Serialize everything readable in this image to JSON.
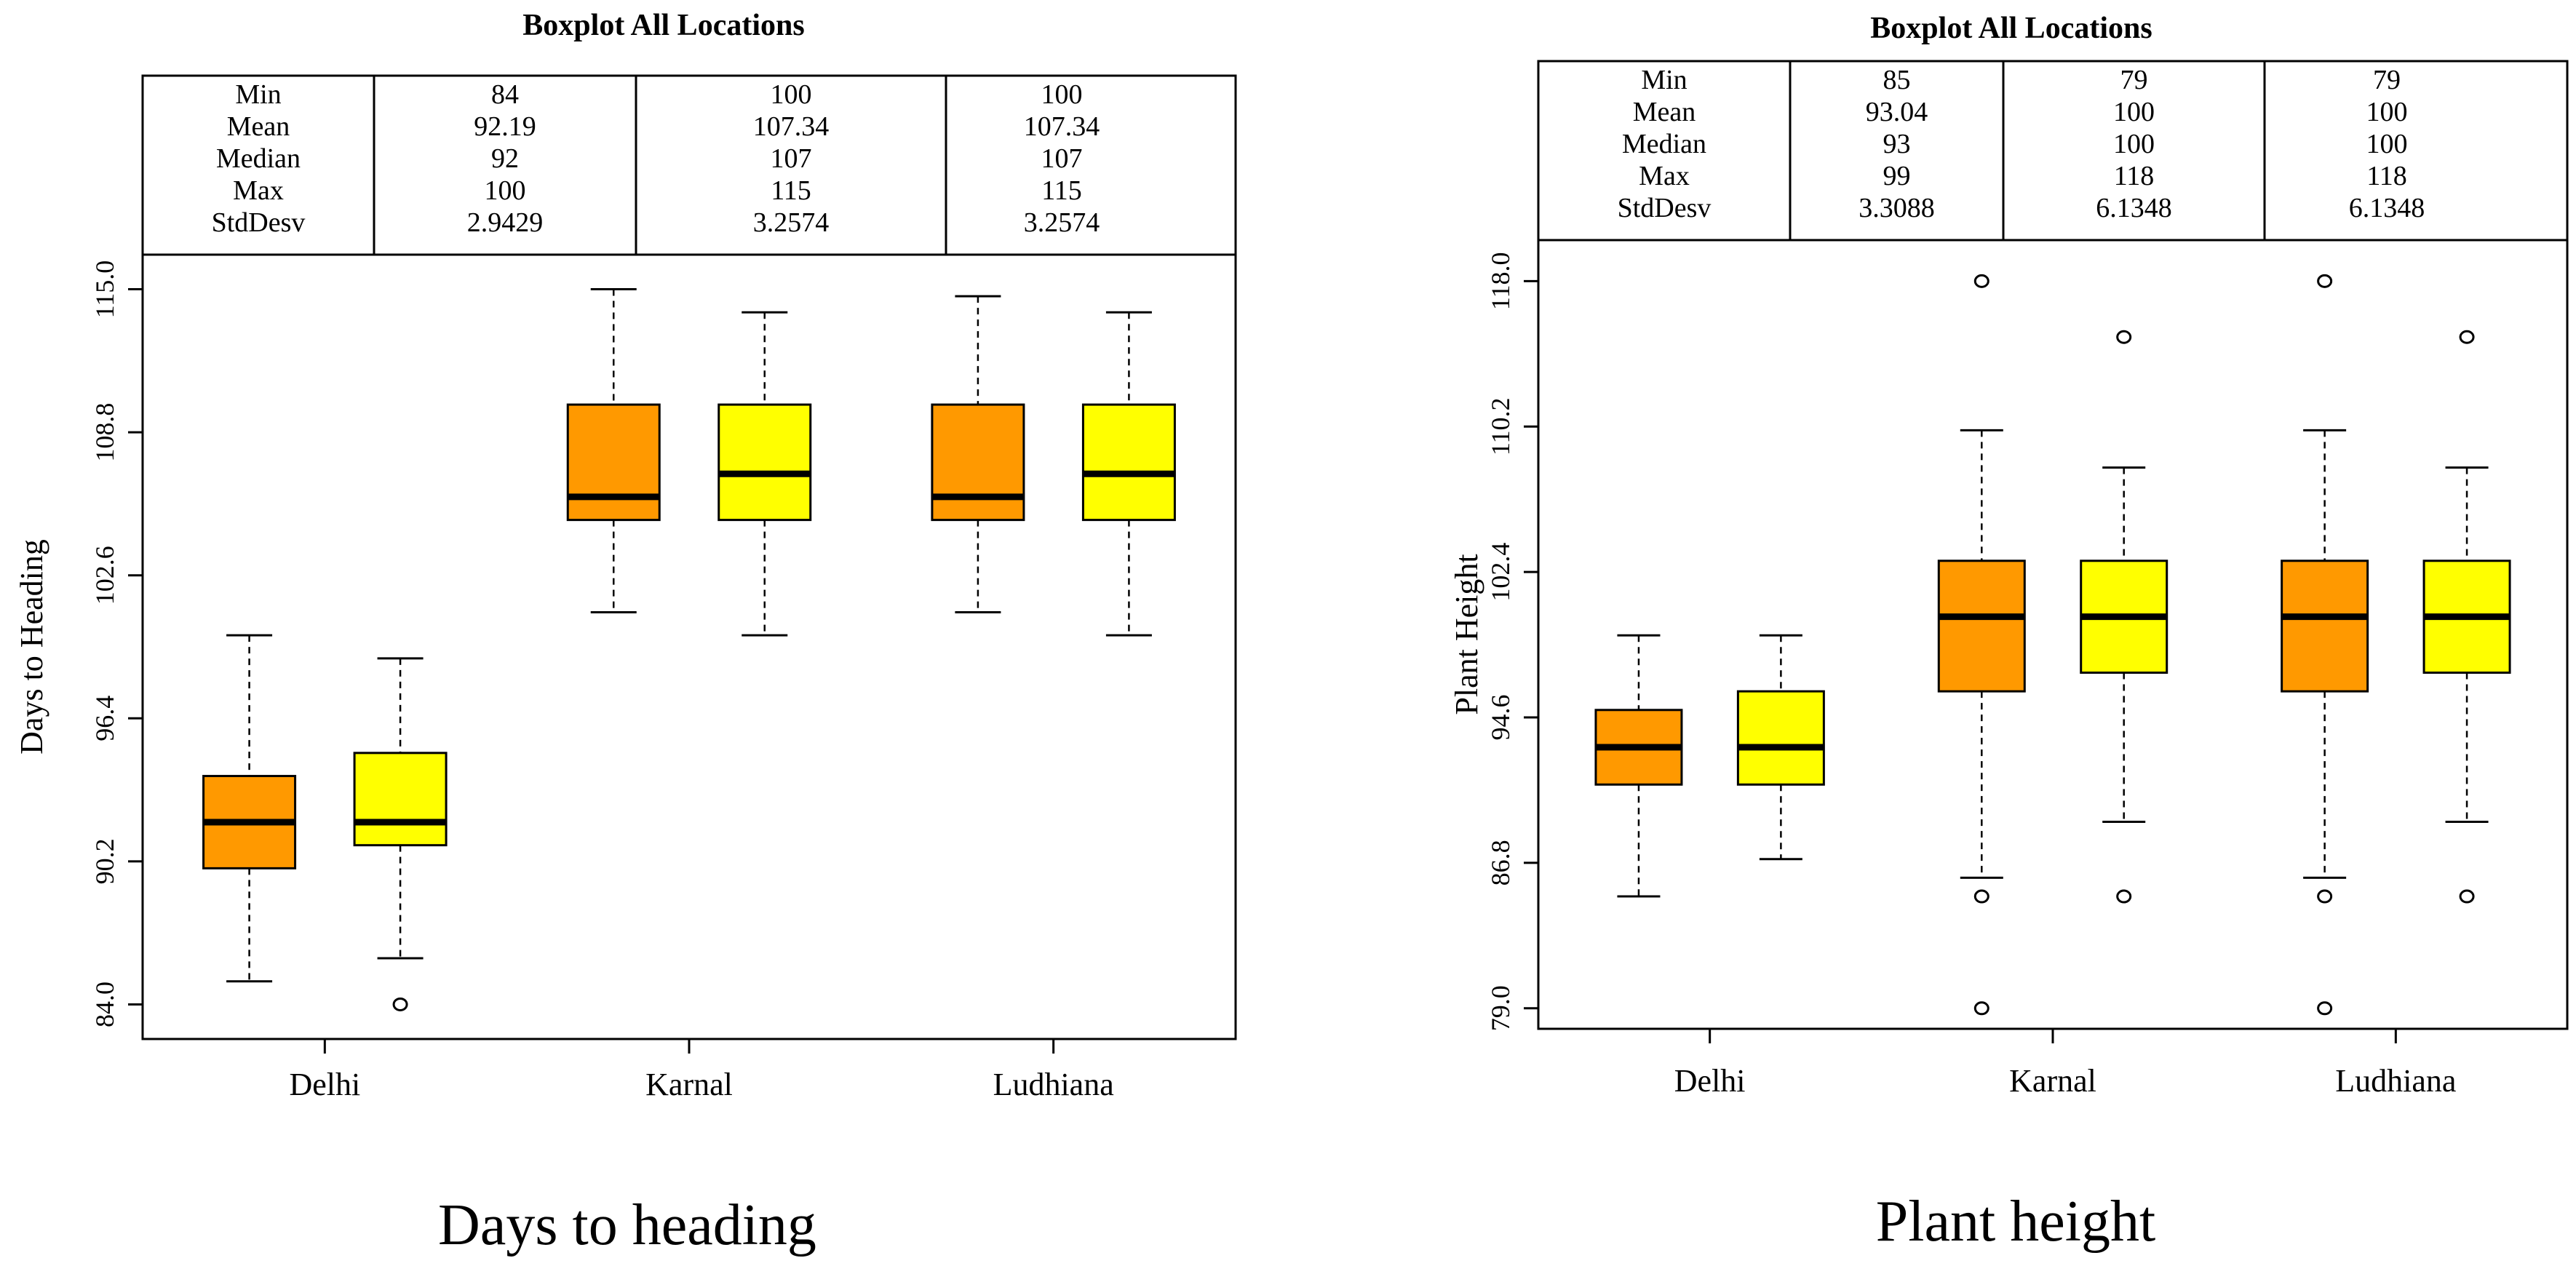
{
  "colors": {
    "series1": "#FF9900",
    "series2": "#FFFF00",
    "line": "#000000",
    "background": "#FFFFFF"
  },
  "chart_data": [
    {
      "type": "boxplot",
      "title": "Boxplot All Locations",
      "ylabel": "Days to Heading",
      "xlabel": "",
      "caption": "Days to heading",
      "categories": [
        "Delhi",
        "Karnal",
        "Ludhiana"
      ],
      "ylim": [
        82.5,
        116.5
      ],
      "yticks": [
        84.0,
        90.2,
        96.4,
        102.6,
        108.8,
        115.0
      ],
      "ytick_labels": [
        "84.0",
        "90.2",
        "96.4",
        "102.6",
        "108.8",
        "115.0"
      ],
      "stats_labels": [
        "Min",
        "Mean",
        "Median",
        "Max",
        "StdDesv"
      ],
      "stats_columns": [
        [
          "84",
          "92.19",
          "92",
          "100",
          "2.9429"
        ],
        [
          "100",
          "107.34",
          "107",
          "115",
          "3.2574"
        ],
        [
          "100",
          "107.34",
          "107",
          "115",
          "3.2574"
        ]
      ],
      "boxes": [
        {
          "category": "Delhi",
          "series": 1,
          "whisker_low": 85,
          "q1": 89.9,
          "median": 91.9,
          "q3": 93.9,
          "whisker_high": 100,
          "outliers": []
        },
        {
          "category": "Delhi",
          "series": 2,
          "whisker_low": 86,
          "q1": 90.9,
          "median": 91.9,
          "q3": 94.9,
          "whisker_high": 99,
          "outliers": [
            84
          ]
        },
        {
          "category": "Karnal",
          "series": 1,
          "whisker_low": 101,
          "q1": 105,
          "median": 106,
          "q3": 110,
          "whisker_high": 115,
          "outliers": []
        },
        {
          "category": "Karnal",
          "series": 2,
          "whisker_low": 100,
          "q1": 105,
          "median": 107,
          "q3": 110,
          "whisker_high": 114,
          "outliers": []
        },
        {
          "category": "Ludhiana",
          "series": 1,
          "whisker_low": 101,
          "q1": 105,
          "median": 106,
          "q3": 110,
          "whisker_high": 114.7,
          "outliers": []
        },
        {
          "category": "Ludhiana",
          "series": 2,
          "whisker_low": 100,
          "q1": 105,
          "median": 107,
          "q3": 110,
          "whisker_high": 114,
          "outliers": []
        }
      ]
    },
    {
      "type": "boxplot",
      "title": "Boxplot All Locations",
      "ylabel": "Plant Height",
      "xlabel": "",
      "caption": "Plant height",
      "categories": [
        "Delhi",
        "Karnal",
        "Ludhiana"
      ],
      "ylim": [
        77.9,
        120.2
      ],
      "yticks": [
        79.0,
        86.8,
        94.6,
        102.4,
        110.2,
        118.0
      ],
      "ytick_labels": [
        "79.0",
        "86.8",
        "94.6",
        "102.4",
        "110.2",
        "118.0"
      ],
      "stats_labels": [
        "Min",
        "Mean",
        "Median",
        "Max",
        "StdDesv"
      ],
      "stats_columns": [
        [
          "85",
          "93.04",
          "93",
          "99",
          "3.3088"
        ],
        [
          "79",
          "100",
          "100",
          "118",
          "6.1348"
        ],
        [
          "79",
          "100",
          "100",
          "118",
          "6.1348"
        ]
      ],
      "boxes": [
        {
          "category": "Delhi",
          "series": 1,
          "whisker_low": 85,
          "q1": 91,
          "median": 93,
          "q3": 95,
          "whisker_high": 99,
          "outliers": []
        },
        {
          "category": "Delhi",
          "series": 2,
          "whisker_low": 87,
          "q1": 91,
          "median": 93,
          "q3": 96,
          "whisker_high": 99,
          "outliers": []
        },
        {
          "category": "Karnal",
          "series": 1,
          "whisker_low": 86,
          "q1": 96,
          "median": 100,
          "q3": 103,
          "whisker_high": 110,
          "outliers": [
            118,
            85,
            79
          ]
        },
        {
          "category": "Karnal",
          "series": 2,
          "whisker_low": 89,
          "q1": 97,
          "median": 100,
          "q3": 103,
          "whisker_high": 108,
          "outliers": [
            115,
            85
          ]
        },
        {
          "category": "Ludhiana",
          "series": 1,
          "whisker_low": 86,
          "q1": 96,
          "median": 100,
          "q3": 103,
          "whisker_high": 110,
          "outliers": [
            118,
            85,
            79
          ]
        },
        {
          "category": "Ludhiana",
          "series": 2,
          "whisker_low": 89,
          "q1": 97,
          "median": 100,
          "q3": 103,
          "whisker_high": 108,
          "outliers": [
            115,
            85
          ]
        }
      ]
    }
  ]
}
